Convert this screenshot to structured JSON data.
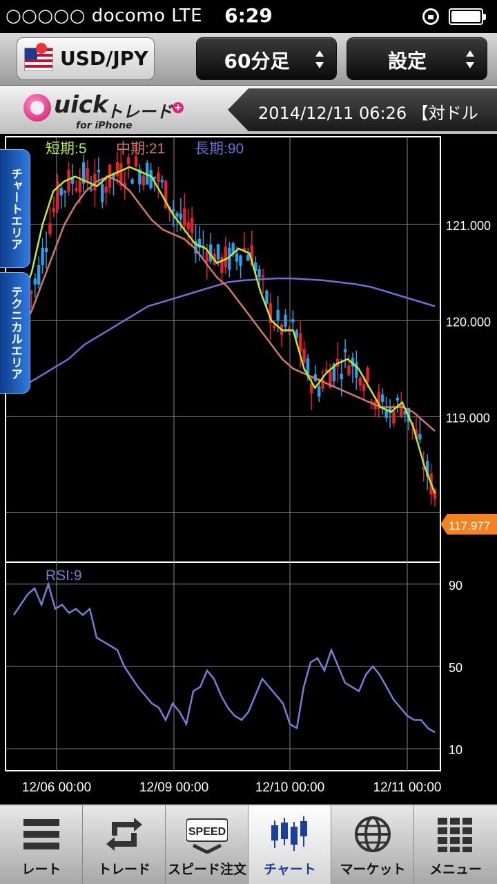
{
  "status": {
    "carrier": "○○○○○ docomo  LTE",
    "time": "6:29"
  },
  "toolbar": {
    "pair": "USD/JPY",
    "timeframe": "60分足",
    "settings": "設定"
  },
  "brand": {
    "quick": "uick",
    "trade": "トレード",
    "sub": "for iPhone",
    "datetime": "2014/12/11 06:26 【対ドル"
  },
  "side_tabs": [
    "チャートエリア",
    "テクニカルエリア"
  ],
  "legend": {
    "short": "短期:5",
    "mid": "中期:21",
    "long": "長期:90",
    "rsi": "RSI:9"
  },
  "colors": {
    "up": "#e8202a",
    "down": "#2aa0e8",
    "sma_short": "#b8f030",
    "sma_mid": "#d27a6a",
    "sma_long": "#7a6ad8",
    "rsi": "#8478d8",
    "price_tag": "#f58220"
  },
  "chart_data": [
    {
      "type": "candlestick",
      "ylim": [
        117.5,
        121.9
      ],
      "yticks": [
        "121.000",
        "120.000",
        "119.000"
      ],
      "xticks": [
        "12/06 00:00",
        "12/09 00:00",
        "12/10 00:00",
        "12/11 00:00"
      ],
      "last_price": "117.977",
      "series": [
        {
          "name": "短期:5",
          "values": [
            120.2,
            120.5,
            121.0,
            121.35,
            121.45,
            121.5,
            121.45,
            121.4,
            121.5,
            121.55,
            121.6,
            121.55,
            121.5,
            121.3,
            121.1,
            120.95,
            120.8,
            120.75,
            120.6,
            120.65,
            120.75,
            120.7,
            120.3,
            120.0,
            119.9,
            119.9,
            119.5,
            119.3,
            119.45,
            119.55,
            119.6,
            119.5,
            119.3,
            119.1,
            119.05,
            119.15,
            118.9,
            118.5,
            118.2
          ]
        },
        {
          "name": "中期:21",
          "values": [
            119.9,
            120.1,
            120.4,
            120.7,
            121.0,
            121.2,
            121.35,
            121.45,
            121.5,
            121.45,
            121.35,
            121.2,
            121.05,
            120.95,
            120.9,
            120.85,
            120.75,
            120.6,
            120.45,
            120.35,
            120.2,
            120.05,
            119.9,
            119.75,
            119.6,
            119.5,
            119.45,
            119.4,
            119.35,
            119.3,
            119.25,
            119.2,
            119.15,
            119.1,
            119.1,
            119.1,
            119.05,
            118.95,
            118.85
          ]
        },
        {
          "name": "長期:90",
          "values": [
            119.3,
            119.4,
            119.5,
            119.6,
            119.75,
            119.85,
            119.95,
            120.05,
            120.15,
            120.2,
            120.25,
            120.3,
            120.35,
            120.4,
            120.42,
            120.43,
            120.44,
            120.44,
            120.43,
            120.42,
            120.4,
            120.38,
            120.35,
            120.3,
            120.25,
            120.2,
            120.15
          ]
        }
      ]
    },
    {
      "type": "line",
      "yticks": [
        "90",
        "50",
        "10"
      ],
      "ylim": [
        0,
        100
      ],
      "series": [
        {
          "name": "RSI:9",
          "values": [
            75,
            80,
            85,
            88,
            80,
            90,
            78,
            80,
            76,
            78,
            75,
            78,
            64,
            62,
            60,
            58,
            50,
            45,
            40,
            36,
            32,
            30,
            24,
            32,
            28,
            22,
            38,
            40,
            48,
            44,
            36,
            30,
            26,
            24,
            28,
            36,
            44,
            40,
            36,
            32,
            22,
            20,
            40,
            52,
            54,
            48,
            58,
            50,
            42,
            40,
            38,
            46,
            50,
            46,
            40,
            34,
            30,
            26,
            24,
            24,
            20,
            18
          ]
        }
      ]
    }
  ],
  "tabs": [
    {
      "label": "レート",
      "icon": "rate-icon"
    },
    {
      "label": "トレード",
      "icon": "trade-icon"
    },
    {
      "label": "スピード注文",
      "icon": "speed-icon",
      "icon_text": "SPEED"
    },
    {
      "label": "チャート",
      "icon": "chart-icon"
    },
    {
      "label": "マーケット",
      "icon": "globe-icon"
    },
    {
      "label": "メニュー",
      "icon": "menu-grid-icon"
    }
  ]
}
